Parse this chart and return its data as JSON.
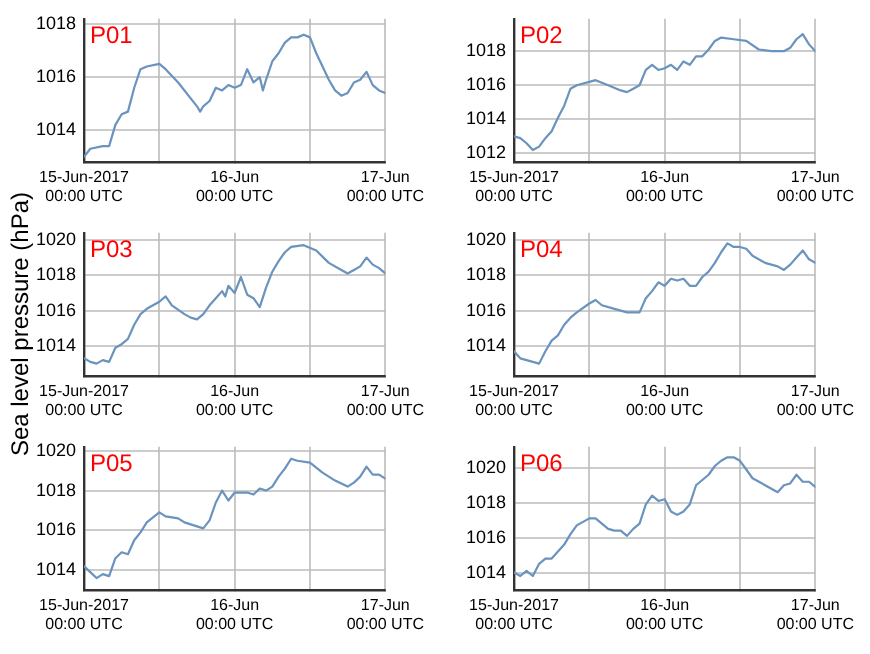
{
  "chart_data": [
    {
      "type": "line",
      "title": "P01",
      "grid": true,
      "xlim": [
        "2017-06-15T00:00",
        "2017-06-17T00:00"
      ],
      "ylim": [
        1012.8,
        1018.2
      ],
      "yticks": [
        1014,
        1016,
        1018
      ],
      "xticks": [
        {
          "value": "2017-06-15T00:00",
          "label": "15-Jun-2017\n00:00 UTC"
        },
        {
          "value": "2017-06-15T12:00",
          "label": null
        },
        {
          "value": "2017-06-16T00:00",
          "label": "16-Jun\n00:00 UTC"
        },
        {
          "value": "2017-06-16T12:00",
          "label": null
        },
        {
          "value": "2017-06-17T00:00",
          "label": "17-Jun\n00:00 UTC"
        }
      ],
      "series": [
        {
          "color": "#6a93bd",
          "x": [
            "2017-06-15T00:00",
            "2017-06-15T01:00",
            "2017-06-15T03:00",
            "2017-06-15T04:00",
            "2017-06-15T05:00",
            "2017-06-15T06:00",
            "2017-06-15T07:00",
            "2017-06-15T08:00",
            "2017-06-15T09:00",
            "2017-06-15T10:00",
            "2017-06-15T12:00",
            "2017-06-15T13:00",
            "2017-06-15T15:00",
            "2017-06-15T18:00",
            "2017-06-15T18:30",
            "2017-06-15T19:00",
            "2017-06-15T20:00",
            "2017-06-15T21:00",
            "2017-06-15T22:00",
            "2017-06-15T23:00",
            "2017-06-16T00:00",
            "2017-06-16T01:00",
            "2017-06-16T02:00",
            "2017-06-16T03:00",
            "2017-06-16T04:00",
            "2017-06-16T04:30",
            "2017-06-16T05:00",
            "2017-06-16T06:00",
            "2017-06-16T07:00",
            "2017-06-16T08:00",
            "2017-06-16T09:00",
            "2017-06-16T10:00",
            "2017-06-16T11:00",
            "2017-06-16T12:00",
            "2017-06-16T13:00",
            "2017-06-16T14:00",
            "2017-06-16T15:00",
            "2017-06-16T16:00",
            "2017-06-16T17:00",
            "2017-06-16T18:00",
            "2017-06-16T19:00",
            "2017-06-16T20:00",
            "2017-06-16T21:00",
            "2017-06-16T22:00",
            "2017-06-16T23:00",
            "2017-06-17T00:00"
          ],
          "values": [
            1013.0,
            1013.3,
            1013.4,
            1013.4,
            1014.2,
            1014.6,
            1014.7,
            1015.6,
            1016.3,
            1016.4,
            1016.5,
            1016.3,
            1015.8,
            1014.9,
            1014.7,
            1014.9,
            1015.1,
            1015.6,
            1015.5,
            1015.7,
            1015.6,
            1015.7,
            1016.3,
            1015.8,
            1016.0,
            1015.5,
            1015.9,
            1016.6,
            1016.9,
            1017.3,
            1017.5,
            1017.5,
            1017.6,
            1017.5,
            1016.9,
            1016.4,
            1015.9,
            1015.5,
            1015.3,
            1015.4,
            1015.8,
            1015.9,
            1016.2,
            1015.7,
            1015.5,
            1015.4
          ]
        }
      ]
    },
    {
      "type": "line",
      "title": "P02",
      "grid": true,
      "xlim": [
        "2017-06-15T00:00",
        "2017-06-17T00:00"
      ],
      "ylim": [
        1011.5,
        1019.9
      ],
      "yticks": [
        1012,
        1014,
        1016,
        1018
      ],
      "xticks": [
        {
          "value": "2017-06-15T00:00",
          "label": "15-Jun-2017\n00:00 UTC"
        },
        {
          "value": "2017-06-15T12:00",
          "label": null
        },
        {
          "value": "2017-06-16T00:00",
          "label": "16-Jun\n00:00 UTC"
        },
        {
          "value": "2017-06-16T12:00",
          "label": null
        },
        {
          "value": "2017-06-17T00:00",
          "label": "17-Jun\n00:00 UTC"
        }
      ],
      "series": [
        {
          "color": "#6a93bd",
          "x": [
            "2017-06-15T00:00",
            "2017-06-15T01:00",
            "2017-06-15T02:00",
            "2017-06-15T03:00",
            "2017-06-15T04:00",
            "2017-06-15T05:00",
            "2017-06-15T06:00",
            "2017-06-15T07:00",
            "2017-06-15T08:00",
            "2017-06-15T09:00",
            "2017-06-15T10:00",
            "2017-06-15T12:00",
            "2017-06-15T13:00",
            "2017-06-15T15:00",
            "2017-06-15T17:00",
            "2017-06-15T18:00",
            "2017-06-15T19:00",
            "2017-06-15T20:00",
            "2017-06-15T21:00",
            "2017-06-15T22:00",
            "2017-06-15T23:00",
            "2017-06-16T00:00",
            "2017-06-16T01:00",
            "2017-06-16T02:00",
            "2017-06-16T03:00",
            "2017-06-16T04:00",
            "2017-06-16T05:00",
            "2017-06-16T06:00",
            "2017-06-16T07:00",
            "2017-06-16T08:00",
            "2017-06-16T09:00",
            "2017-06-16T11:00",
            "2017-06-16T13:00",
            "2017-06-16T15:00",
            "2017-06-16T17:00",
            "2017-06-16T19:00",
            "2017-06-16T20:00",
            "2017-06-16T21:00",
            "2017-06-16T22:00",
            "2017-06-16T23:00",
            "2017-06-17T00:00"
          ],
          "values": [
            1013.0,
            1012.9,
            1012.6,
            1012.2,
            1012.4,
            1012.9,
            1013.3,
            1014.1,
            1014.8,
            1015.8,
            1016.0,
            1016.2,
            1016.3,
            1016.0,
            1015.7,
            1015.6,
            1015.8,
            1016.0,
            1016.9,
            1017.2,
            1016.9,
            1017.0,
            1017.2,
            1016.9,
            1017.4,
            1017.2,
            1017.7,
            1017.7,
            1018.1,
            1018.6,
            1018.8,
            1018.7,
            1018.6,
            1018.1,
            1018.0,
            1018.0,
            1018.2,
            1018.7,
            1019.0,
            1018.4,
            1018.0
          ]
        }
      ]
    },
    {
      "type": "line",
      "title": "P03",
      "ylabel": "Sea level pressure (hPa)",
      "grid": true,
      "xlim": [
        "2017-06-15T00:00",
        "2017-06-17T00:00"
      ],
      "ylim": [
        1012.3,
        1020.4
      ],
      "yticks": [
        1014,
        1016,
        1018,
        1020
      ],
      "xticks": [
        {
          "value": "2017-06-15T00:00",
          "label": "15-Jun-2017\n00:00 UTC"
        },
        {
          "value": "2017-06-15T12:00",
          "label": null
        },
        {
          "value": "2017-06-16T00:00",
          "label": "16-Jun\n00:00 UTC"
        },
        {
          "value": "2017-06-16T12:00",
          "label": null
        },
        {
          "value": "2017-06-17T00:00",
          "label": "17-Jun\n00:00 UTC"
        }
      ],
      "series": [
        {
          "color": "#6a93bd",
          "x": [
            "2017-06-15T00:00",
            "2017-06-15T01:00",
            "2017-06-15T02:00",
            "2017-06-15T03:00",
            "2017-06-15T04:00",
            "2017-06-15T05:00",
            "2017-06-15T06:00",
            "2017-06-15T07:00",
            "2017-06-15T08:00",
            "2017-06-15T09:00",
            "2017-06-15T10:00",
            "2017-06-15T12:00",
            "2017-06-15T13:00",
            "2017-06-15T14:00",
            "2017-06-15T16:00",
            "2017-06-15T17:00",
            "2017-06-15T18:00",
            "2017-06-15T19:00",
            "2017-06-15T20:00",
            "2017-06-15T21:00",
            "2017-06-15T22:00",
            "2017-06-15T22:30",
            "2017-06-15T23:00",
            "2017-06-16T00:00",
            "2017-06-16T01:00",
            "2017-06-16T02:00",
            "2017-06-16T03:00",
            "2017-06-16T04:00",
            "2017-06-16T05:00",
            "2017-06-16T06:00",
            "2017-06-16T07:00",
            "2017-06-16T08:00",
            "2017-06-16T09:00",
            "2017-06-16T11:00",
            "2017-06-16T13:00",
            "2017-06-16T15:00",
            "2017-06-16T17:00",
            "2017-06-16T18:00",
            "2017-06-16T19:00",
            "2017-06-16T20:00",
            "2017-06-16T21:00",
            "2017-06-16T22:00",
            "2017-06-16T23:00",
            "2017-06-17T00:00"
          ],
          "values": [
            1013.3,
            1013.1,
            1013.0,
            1013.2,
            1013.1,
            1013.9,
            1014.1,
            1014.4,
            1015.2,
            1015.8,
            1016.1,
            1016.5,
            1016.8,
            1016.3,
            1015.8,
            1015.6,
            1015.5,
            1015.8,
            1016.3,
            1016.7,
            1017.1,
            1016.8,
            1017.4,
            1017.0,
            1017.9,
            1016.9,
            1016.7,
            1016.2,
            1017.3,
            1018.2,
            1018.8,
            1019.3,
            1019.6,
            1019.7,
            1019.4,
            1018.7,
            1018.3,
            1018.1,
            1018.3,
            1018.5,
            1019.0,
            1018.6,
            1018.4,
            1018.1
          ]
        }
      ]
    },
    {
      "type": "line",
      "title": "P04",
      "grid": true,
      "xlim": [
        "2017-06-15T00:00",
        "2017-06-17T00:00"
      ],
      "ylim": [
        1012.3,
        1020.4
      ],
      "yticks": [
        1014,
        1016,
        1018,
        1020
      ],
      "xticks": [
        {
          "value": "2017-06-15T00:00",
          "label": "15-Jun-2017\n00:00 UTC"
        },
        {
          "value": "2017-06-15T12:00",
          "label": null
        },
        {
          "value": "2017-06-16T00:00",
          "label": "16-Jun\n00:00 UTC"
        },
        {
          "value": "2017-06-16T12:00",
          "label": null
        },
        {
          "value": "2017-06-17T00:00",
          "label": "17-Jun\n00:00 UTC"
        }
      ],
      "series": [
        {
          "color": "#6a93bd",
          "x": [
            "2017-06-15T00:00",
            "2017-06-15T01:00",
            "2017-06-15T03:00",
            "2017-06-15T04:00",
            "2017-06-15T05:00",
            "2017-06-15T06:00",
            "2017-06-15T07:00",
            "2017-06-15T08:00",
            "2017-06-15T09:00",
            "2017-06-15T10:00",
            "2017-06-15T12:00",
            "2017-06-15T13:00",
            "2017-06-15T14:00",
            "2017-06-15T16:00",
            "2017-06-15T18:00",
            "2017-06-15T20:00",
            "2017-06-15T21:00",
            "2017-06-15T22:00",
            "2017-06-15T23:00",
            "2017-06-16T00:00",
            "2017-06-16T01:00",
            "2017-06-16T02:00",
            "2017-06-16T03:00",
            "2017-06-16T04:00",
            "2017-06-16T05:00",
            "2017-06-16T06:00",
            "2017-06-16T07:00",
            "2017-06-16T08:00",
            "2017-06-16T09:00",
            "2017-06-16T10:00",
            "2017-06-16T11:00",
            "2017-06-16T12:00",
            "2017-06-16T13:00",
            "2017-06-16T14:00",
            "2017-06-16T16:00",
            "2017-06-16T18:00",
            "2017-06-16T19:00",
            "2017-06-16T20:00",
            "2017-06-16T21:00",
            "2017-06-16T22:00",
            "2017-06-16T23:00",
            "2017-06-17T00:00"
          ],
          "values": [
            1013.7,
            1013.3,
            1013.1,
            1013.0,
            1013.7,
            1014.3,
            1014.6,
            1015.2,
            1015.6,
            1015.9,
            1016.4,
            1016.6,
            1016.3,
            1016.1,
            1015.9,
            1015.9,
            1016.7,
            1017.1,
            1017.6,
            1017.4,
            1017.8,
            1017.7,
            1017.8,
            1017.4,
            1017.4,
            1017.9,
            1018.2,
            1018.7,
            1019.3,
            1019.8,
            1019.6,
            1019.6,
            1019.5,
            1019.1,
            1018.7,
            1018.5,
            1018.3,
            1018.6,
            1019.0,
            1019.4,
            1018.9,
            1018.7
          ]
        }
      ]
    },
    {
      "type": "line",
      "title": "P05",
      "grid": true,
      "xlim": [
        "2017-06-15T00:00",
        "2017-06-17T00:00"
      ],
      "ylim": [
        1013.0,
        1020.2
      ],
      "yticks": [
        1014,
        1016,
        1018,
        1020
      ],
      "xticks": [
        {
          "value": "2017-06-15T00:00",
          "label": "15-Jun-2017\n00:00 UTC"
        },
        {
          "value": "2017-06-15T12:00",
          "label": null
        },
        {
          "value": "2017-06-16T00:00",
          "label": "16-Jun\n00:00 UTC"
        },
        {
          "value": "2017-06-16T12:00",
          "label": null
        },
        {
          "value": "2017-06-17T00:00",
          "label": "17-Jun\n00:00 UTC"
        }
      ],
      "series": [
        {
          "color": "#6a93bd",
          "x": [
            "2017-06-15T00:00",
            "2017-06-15T01:00",
            "2017-06-15T02:00",
            "2017-06-15T03:00",
            "2017-06-15T04:00",
            "2017-06-15T05:00",
            "2017-06-15T06:00",
            "2017-06-15T07:00",
            "2017-06-15T08:00",
            "2017-06-15T09:00",
            "2017-06-15T10:00",
            "2017-06-15T12:00",
            "2017-06-15T13:00",
            "2017-06-15T15:00",
            "2017-06-15T16:00",
            "2017-06-15T18:00",
            "2017-06-15T19:00",
            "2017-06-15T20:00",
            "2017-06-15T21:00",
            "2017-06-15T22:00",
            "2017-06-15T23:00",
            "2017-06-16T00:00",
            "2017-06-16T02:00",
            "2017-06-16T03:00",
            "2017-06-16T04:00",
            "2017-06-16T05:00",
            "2017-06-16T06:00",
            "2017-06-16T07:00",
            "2017-06-16T08:00",
            "2017-06-16T09:00",
            "2017-06-16T10:00",
            "2017-06-16T12:00",
            "2017-06-16T14:00",
            "2017-06-16T16:00",
            "2017-06-16T18:00",
            "2017-06-16T19:00",
            "2017-06-16T20:00",
            "2017-06-16T21:00",
            "2017-06-16T22:00",
            "2017-06-16T23:00",
            "2017-06-17T00:00"
          ],
          "values": [
            1014.2,
            1013.9,
            1013.6,
            1013.8,
            1013.7,
            1014.6,
            1014.9,
            1014.8,
            1015.5,
            1015.9,
            1016.4,
            1016.9,
            1016.7,
            1016.6,
            1016.4,
            1016.2,
            1016.1,
            1016.5,
            1017.4,
            1018.0,
            1017.5,
            1017.9,
            1017.9,
            1017.8,
            1018.1,
            1018.0,
            1018.2,
            1018.7,
            1019.1,
            1019.6,
            1019.5,
            1019.4,
            1018.9,
            1018.5,
            1018.2,
            1018.4,
            1018.7,
            1019.2,
            1018.8,
            1018.8,
            1018.6
          ]
        }
      ]
    },
    {
      "type": "line",
      "title": "P06",
      "grid": true,
      "xlim": [
        "2017-06-15T00:00",
        "2017-06-17T00:00"
      ],
      "ylim": [
        1013.0,
        1021.2
      ],
      "yticks": [
        1014,
        1016,
        1018,
        1020
      ],
      "xticks": [
        {
          "value": "2017-06-15T00:00",
          "label": "15-Jun-2017\n00:00 UTC"
        },
        {
          "value": "2017-06-15T12:00",
          "label": null
        },
        {
          "value": "2017-06-16T00:00",
          "label": "16-Jun\n00:00 UTC"
        },
        {
          "value": "2017-06-16T12:00",
          "label": null
        },
        {
          "value": "2017-06-17T00:00",
          "label": "17-Jun\n00:00 UTC"
        }
      ],
      "series": [
        {
          "color": "#6a93bd",
          "x": [
            "2017-06-15T00:00",
            "2017-06-15T01:00",
            "2017-06-15T02:00",
            "2017-06-15T03:00",
            "2017-06-15T04:00",
            "2017-06-15T05:00",
            "2017-06-15T06:00",
            "2017-06-15T07:00",
            "2017-06-15T08:00",
            "2017-06-15T09:00",
            "2017-06-15T10:00",
            "2017-06-15T12:00",
            "2017-06-15T13:00",
            "2017-06-15T15:00",
            "2017-06-15T16:00",
            "2017-06-15T17:00",
            "2017-06-15T18:00",
            "2017-06-15T19:00",
            "2017-06-15T20:00",
            "2017-06-15T21:00",
            "2017-06-15T22:00",
            "2017-06-15T23:00",
            "2017-06-16T00:00",
            "2017-06-16T01:00",
            "2017-06-16T02:00",
            "2017-06-16T03:00",
            "2017-06-16T04:00",
            "2017-06-16T05:00",
            "2017-06-16T06:00",
            "2017-06-16T07:00",
            "2017-06-16T08:00",
            "2017-06-16T09:00",
            "2017-06-16T10:00",
            "2017-06-16T11:00",
            "2017-06-16T12:00",
            "2017-06-16T13:00",
            "2017-06-16T14:00",
            "2017-06-16T16:00",
            "2017-06-16T18:00",
            "2017-06-16T19:00",
            "2017-06-16T20:00",
            "2017-06-16T21:00",
            "2017-06-16T22:00",
            "2017-06-16T23:00",
            "2017-06-17T00:00"
          ],
          "values": [
            1014.0,
            1013.8,
            1014.1,
            1013.8,
            1014.5,
            1014.8,
            1014.8,
            1015.2,
            1015.6,
            1016.2,
            1016.7,
            1017.1,
            1017.1,
            1016.5,
            1016.4,
            1016.4,
            1016.1,
            1016.5,
            1016.8,
            1017.9,
            1018.4,
            1018.1,
            1018.2,
            1017.5,
            1017.3,
            1017.5,
            1017.9,
            1019.0,
            1019.3,
            1019.6,
            1020.1,
            1020.4,
            1020.6,
            1020.6,
            1020.4,
            1019.9,
            1019.4,
            1019.0,
            1018.6,
            1019.0,
            1019.1,
            1019.6,
            1019.2,
            1019.2,
            1018.9
          ]
        }
      ]
    }
  ]
}
